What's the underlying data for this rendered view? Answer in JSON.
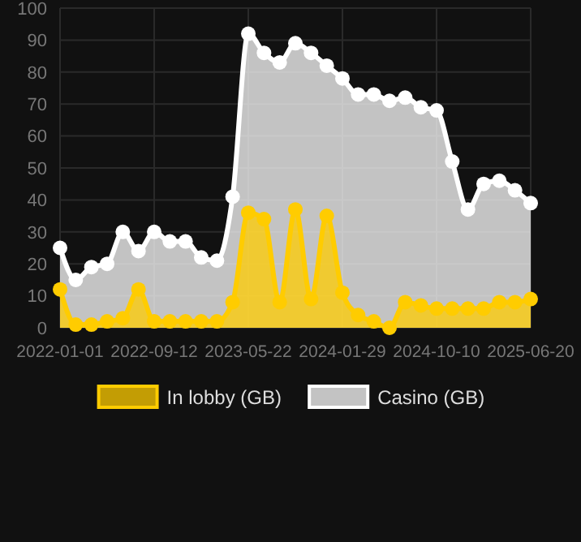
{
  "chart_data": {
    "type": "area",
    "categories": [
      "2022-01-01",
      null,
      null,
      null,
      null,
      null,
      "2022-09-12",
      null,
      null,
      null,
      null,
      null,
      "2023-05-22",
      null,
      null,
      null,
      null,
      null,
      "2024-01-29",
      null,
      null,
      null,
      null,
      null,
      "2024-10-10",
      null,
      null,
      null,
      null,
      null,
      "2025-06-20"
    ],
    "series": [
      {
        "name": "In lobby (GB)",
        "color": "#ffcc00",
        "values": [
          12,
          1,
          1,
          2,
          3,
          12,
          2,
          2,
          2,
          2,
          2,
          8,
          36,
          34,
          8,
          37,
          9,
          35,
          11,
          4,
          2,
          0,
          8,
          7,
          6,
          6,
          6,
          6,
          8,
          8,
          9
        ]
      },
      {
        "name": "Casino (GB)",
        "color": "#ffffff",
        "values": [
          25,
          15,
          19,
          20,
          30,
          24,
          30,
          27,
          27,
          22,
          21,
          41,
          92,
          86,
          83,
          89,
          86,
          82,
          78,
          73,
          73,
          71,
          72,
          69,
          68,
          52,
          37,
          45,
          46,
          43,
          39
        ]
      }
    ],
    "ylim": [
      0,
      100
    ],
    "yticks": [
      0,
      10,
      20,
      30,
      40,
      50,
      60,
      70,
      80,
      90,
      100
    ],
    "grid": true,
    "legend": "bottom",
    "marker": "circle"
  }
}
